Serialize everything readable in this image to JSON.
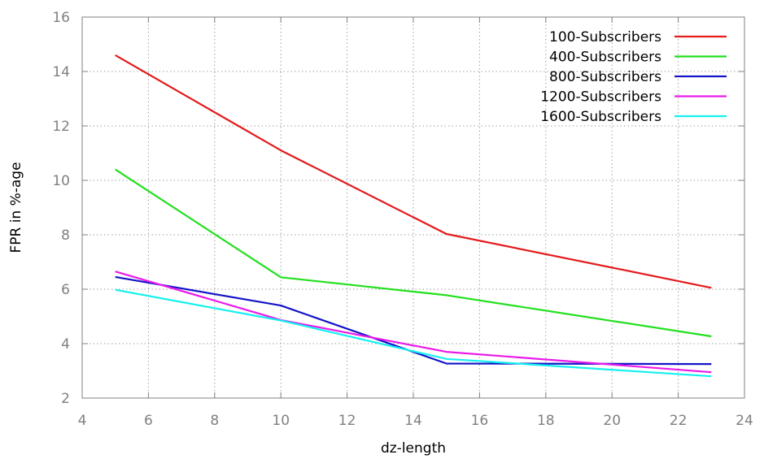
{
  "chart_data": {
    "type": "line",
    "title": "",
    "xlabel": "dz-length",
    "ylabel": "FPR in %-age",
    "xlim": [
      4,
      24
    ],
    "ylim": [
      2,
      16
    ],
    "xticks": [
      4,
      6,
      8,
      10,
      12,
      14,
      16,
      18,
      20,
      22,
      24
    ],
    "yticks": [
      2,
      4,
      6,
      8,
      10,
      12,
      14,
      16
    ],
    "grid": true,
    "legend_position": "top-right",
    "x": [
      5,
      10,
      15,
      23
    ],
    "series": [
      {
        "name": "100-Subscribers",
        "color": "#e41a1c",
        "values": [
          14.6,
          11.1,
          8.03,
          6.05
        ]
      },
      {
        "name": "400-Subscribers",
        "color": "#22e01e",
        "values": [
          10.4,
          6.44,
          5.78,
          4.27
        ]
      },
      {
        "name": "800-Subscribers",
        "color": "#1414c8",
        "values": [
          6.45,
          5.4,
          3.27,
          3.25
        ]
      },
      {
        "name": "1200-Subscribers",
        "color": "#ea1aea",
        "values": [
          6.65,
          4.87,
          3.7,
          2.95
        ]
      },
      {
        "name": "1600-Subscribers",
        "color": "#14f0f0",
        "values": [
          5.98,
          4.85,
          3.44,
          2.8
        ]
      }
    ]
  }
}
